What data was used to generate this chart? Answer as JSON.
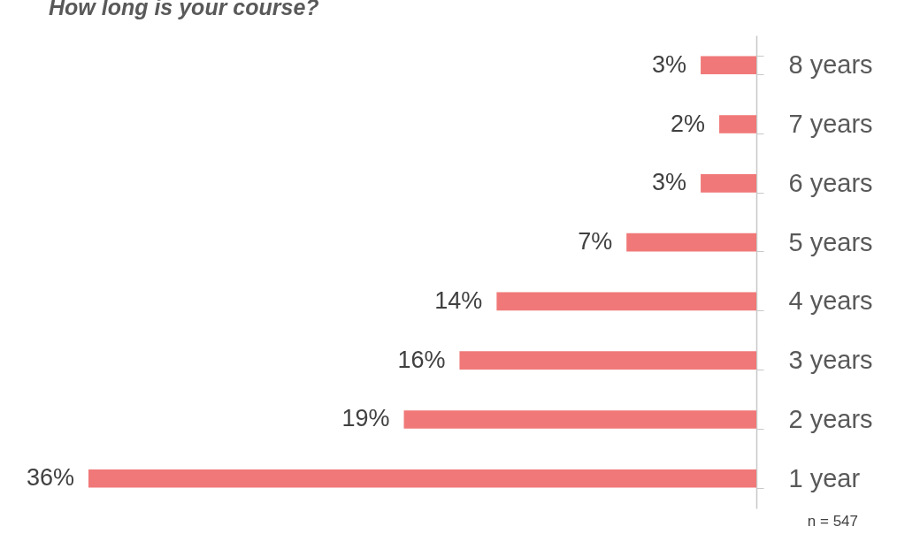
{
  "chart_data": {
    "type": "bar",
    "orientation": "horizontal",
    "title": "How long is your course?",
    "categories": [
      "8 years",
      "7 years",
      "6 years",
      "5 years",
      "4 years",
      "3 years",
      "2 years",
      "1 year"
    ],
    "values": [
      3,
      2,
      3,
      7,
      14,
      16,
      19,
      36
    ],
    "value_labels": [
      "3%",
      "2%",
      "3%",
      "7%",
      "14%",
      "16%",
      "19%",
      "36%"
    ],
    "color": "#f07878",
    "tick_labels": "y",
    "grid": false,
    "annotations": [
      "n = 547"
    ]
  }
}
